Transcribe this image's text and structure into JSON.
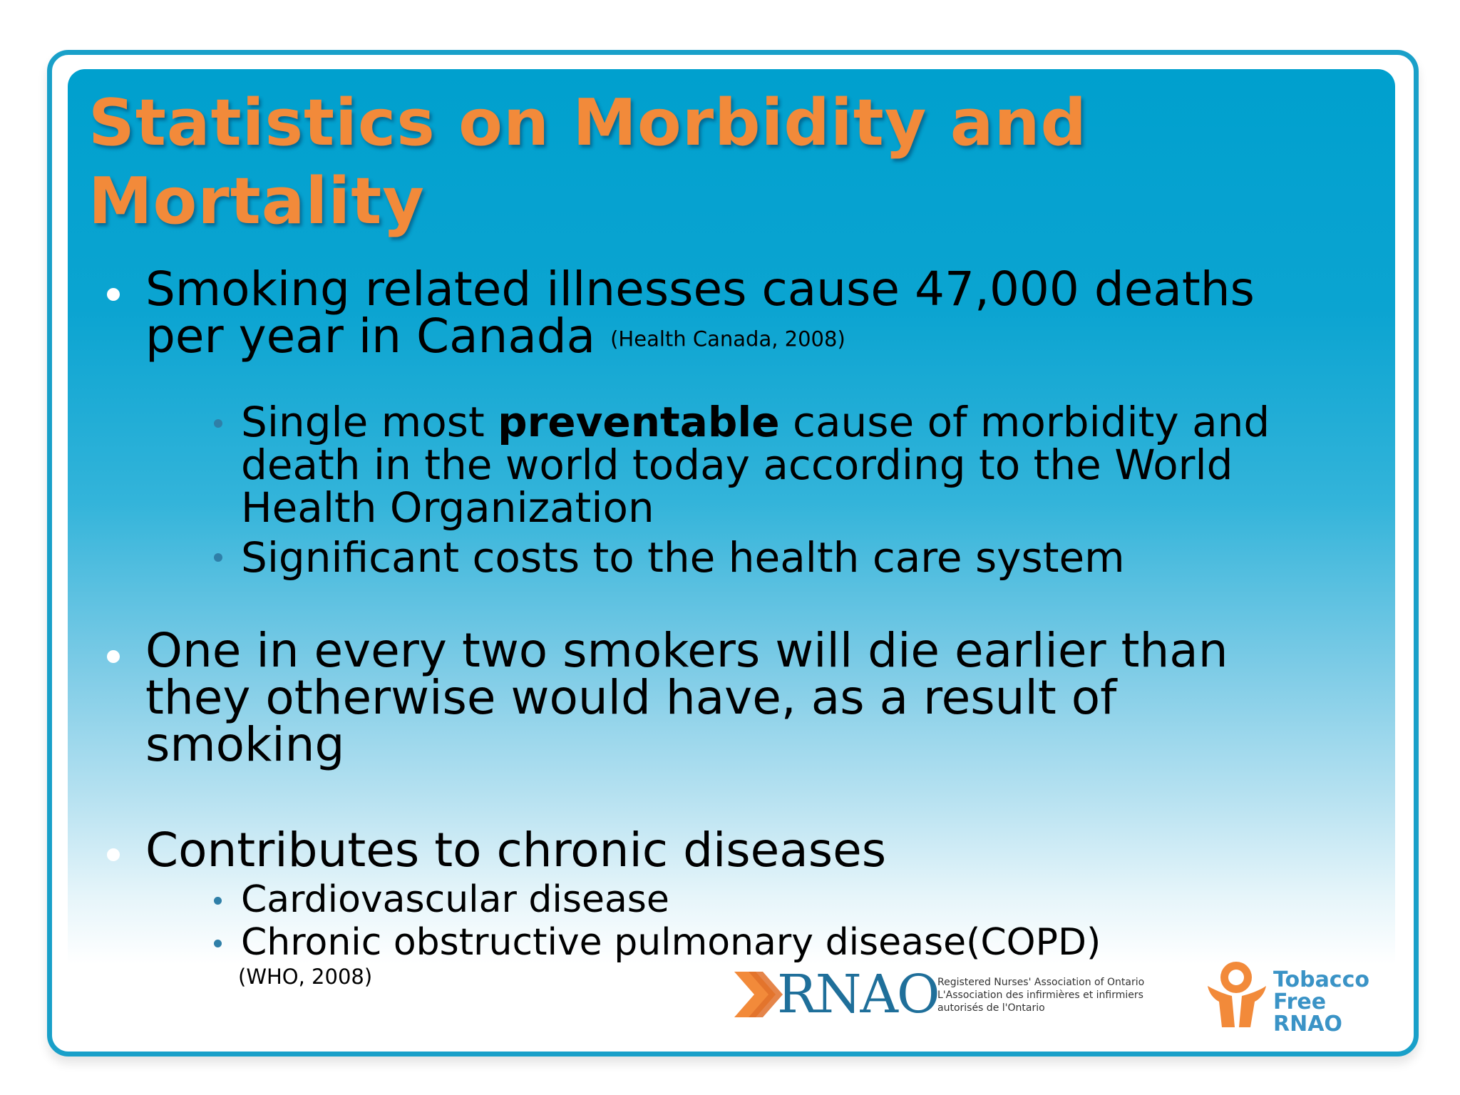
{
  "title": "Statistics on Morbidity and Mortality",
  "bullets": [
    {
      "text": "Smoking related illnesses cause 47,000 deaths per year in Canada",
      "line1": "Smoking related illnesses cause 47,000 deaths",
      "line2": "per year in Canada",
      "citation": "(Health Canada, 2008)",
      "sub": [
        {
          "pre": "Single most ",
          "bold": "preventable",
          "post": " cause of morbidity and",
          "line2": "death in the world today according to the World",
          "line3": "Health Organization"
        },
        {
          "text": "Significant costs to the health care system"
        }
      ]
    },
    {
      "line1": "One in every two smokers will die earlier than",
      "line2": "they otherwise would have, as a result of",
      "line3": "smoking"
    },
    {
      "text": "Contributes to chronic diseases",
      "sub": [
        {
          "text": "Cardiovascular disease"
        },
        {
          "text": "Chronic obstructive pulmonary disease(COPD)"
        }
      ],
      "citation": "(WHO, 2008)"
    }
  ],
  "logos": {
    "rnao": {
      "name": "RNAO",
      "line1": "Registered Nurses' Association of Ontario",
      "line2": "L'Association des infirmières et infirmiers",
      "line3": "autorisés de l'Ontario"
    },
    "tobacco_free": {
      "line1": "Tobacco",
      "line2": "Free RNAO"
    }
  },
  "colors": {
    "title": "#f28a3a",
    "frame": "#19a0c9",
    "panel_top": "#00a0ce",
    "panel_bottom": "#ffffff",
    "text": "#000000",
    "sub_bullet": "#2f7fa8",
    "logo_blue": "#1f6f9a",
    "logo_orange": "#f28a3a"
  }
}
